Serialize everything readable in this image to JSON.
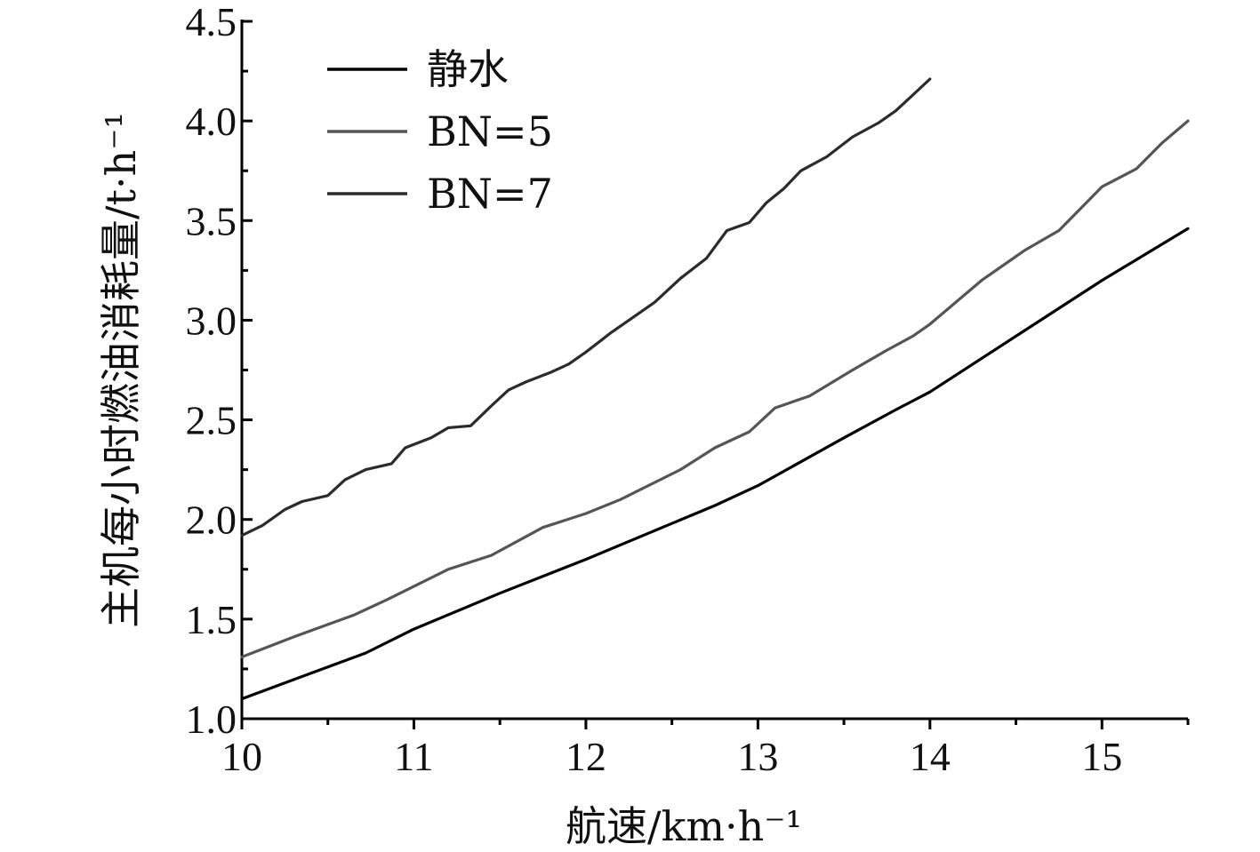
{
  "chart_data": {
    "type": "line",
    "title": "",
    "xlabel": "航速/km·h⁻¹",
    "ylabel": "主机每小时燃油消耗量/t·h⁻¹",
    "xlim": [
      10,
      15.5
    ],
    "ylim": [
      1.0,
      4.5
    ],
    "xticks": [
      10,
      11,
      12,
      13,
      14,
      15
    ],
    "yticks": [
      1.0,
      1.5,
      2.0,
      2.5,
      3.0,
      3.5,
      4.0,
      4.5
    ],
    "xtick_labels": [
      "10",
      "11",
      "12",
      "13",
      "14",
      "15"
    ],
    "ytick_labels": [
      "1.0",
      "1.5",
      "2.0",
      "2.5",
      "3.0",
      "3.5",
      "4.0",
      "4.5"
    ],
    "grid": false,
    "legend_position": "top-left",
    "series": [
      {
        "name": "静水",
        "color": "#000000",
        "x": [
          10.0,
          10.5,
          10.72,
          11.0,
          11.5,
          12.0,
          12.5,
          12.75,
          13.0,
          13.5,
          13.8,
          14.0,
          14.5,
          15.0,
          15.5
        ],
        "y": [
          1.1,
          1.26,
          1.33,
          1.45,
          1.63,
          1.8,
          1.98,
          2.07,
          2.17,
          2.41,
          2.55,
          2.64,
          2.92,
          3.2,
          3.46
        ]
      },
      {
        "name": "BN=5",
        "color": "#555555",
        "x": [
          10.0,
          10.3,
          10.65,
          10.85,
          11.2,
          11.45,
          11.75,
          12.0,
          12.2,
          12.55,
          12.75,
          12.95,
          13.1,
          13.3,
          13.55,
          13.75,
          13.9,
          14.0,
          14.3,
          14.55,
          14.75,
          15.0,
          15.2,
          15.35,
          15.5
        ],
        "y": [
          1.31,
          1.41,
          1.52,
          1.6,
          1.75,
          1.82,
          1.96,
          2.03,
          2.1,
          2.25,
          2.36,
          2.44,
          2.56,
          2.62,
          2.75,
          2.85,
          2.92,
          2.98,
          3.2,
          3.35,
          3.45,
          3.67,
          3.76,
          3.89,
          4.0
        ]
      },
      {
        "name": "BN=7",
        "color": "#2b2b2b",
        "x": [
          10.0,
          10.12,
          10.25,
          10.35,
          10.5,
          10.6,
          10.72,
          10.87,
          10.95,
          11.1,
          11.2,
          11.33,
          11.45,
          11.55,
          11.65,
          11.8,
          11.9,
          12.0,
          12.15,
          12.25,
          12.4,
          12.55,
          12.7,
          12.82,
          12.95,
          13.05,
          13.15,
          13.25,
          13.4,
          13.55,
          13.7,
          13.8,
          13.9,
          14.0
        ],
        "y": [
          1.92,
          1.97,
          2.05,
          2.09,
          2.12,
          2.2,
          2.25,
          2.28,
          2.36,
          2.41,
          2.46,
          2.47,
          2.57,
          2.65,
          2.69,
          2.74,
          2.78,
          2.84,
          2.94,
          3.0,
          3.09,
          3.21,
          3.31,
          3.45,
          3.49,
          3.59,
          3.66,
          3.75,
          3.82,
          3.92,
          3.99,
          4.05,
          4.13,
          4.21
        ]
      }
    ]
  }
}
